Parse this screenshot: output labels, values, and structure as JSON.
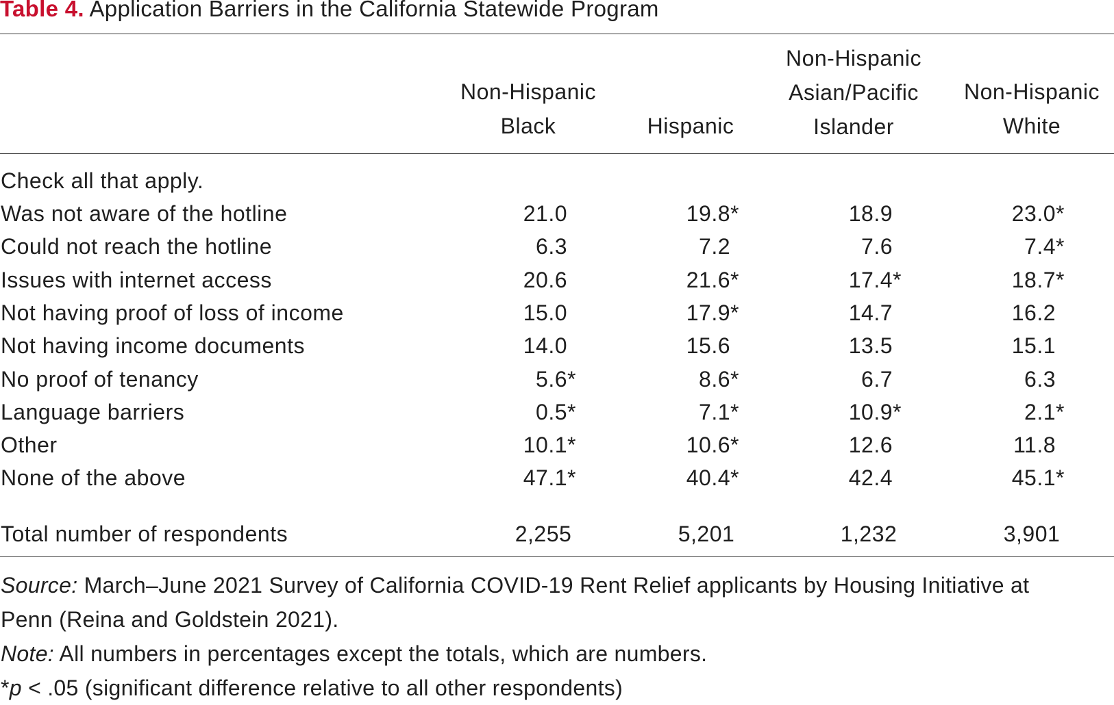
{
  "title": {
    "label": "Table 4.",
    "text": "Application Barriers in the California Statewide Program"
  },
  "columns": [
    {
      "lines": [
        "Non-Hispanic",
        "Black"
      ]
    },
    {
      "lines": [
        "Hispanic"
      ]
    },
    {
      "lines": [
        "Non-Hispanic",
        "Asian/Pacific",
        "Islander"
      ]
    },
    {
      "lines": [
        "Non-Hispanic",
        "White"
      ]
    }
  ],
  "section_label": "Check all that apply.",
  "rows": [
    {
      "label": "Was not aware of the hotline",
      "values": [
        [
          "21.0",
          ""
        ],
        [
          "19.8",
          "*"
        ],
        [
          "18.9",
          ""
        ],
        [
          "23.0",
          "*"
        ]
      ]
    },
    {
      "label": "Could not reach the hotline",
      "values": [
        [
          "6.3",
          ""
        ],
        [
          "7.2",
          ""
        ],
        [
          "7.6",
          ""
        ],
        [
          "7.4",
          "*"
        ]
      ]
    },
    {
      "label": "Issues with internet access",
      "values": [
        [
          "20.6",
          ""
        ],
        [
          "21.6",
          "*"
        ],
        [
          "17.4",
          "*"
        ],
        [
          "18.7",
          "*"
        ]
      ]
    },
    {
      "label": "Not having proof of loss of income",
      "values": [
        [
          "15.0",
          ""
        ],
        [
          "17.9",
          "*"
        ],
        [
          "14.7",
          ""
        ],
        [
          "16.2",
          ""
        ]
      ]
    },
    {
      "label": "Not having income documents",
      "values": [
        [
          "14.0",
          ""
        ],
        [
          "15.6",
          ""
        ],
        [
          "13.5",
          ""
        ],
        [
          "15.1",
          ""
        ]
      ]
    },
    {
      "label": "No proof of tenancy",
      "values": [
        [
          "5.6",
          "*"
        ],
        [
          "8.6",
          "*"
        ],
        [
          "6.7",
          ""
        ],
        [
          "6.3",
          ""
        ]
      ]
    },
    {
      "label": "Language barriers",
      "values": [
        [
          "0.5",
          "*"
        ],
        [
          "7.1",
          "*"
        ],
        [
          "10.9",
          "*"
        ],
        [
          "2.1",
          "*"
        ]
      ]
    },
    {
      "label": "Other",
      "values": [
        [
          "10.1",
          "*"
        ],
        [
          "10.6",
          "*"
        ],
        [
          "12.6",
          ""
        ],
        [
          "11.8",
          ""
        ]
      ]
    },
    {
      "label": "None of the above",
      "values": [
        [
          "47.1",
          "*"
        ],
        [
          "40.4",
          "*"
        ],
        [
          "42.4",
          ""
        ],
        [
          "45.1",
          "*"
        ]
      ]
    }
  ],
  "total": {
    "label": "Total number of respondents",
    "values": [
      "2,255",
      "5,201",
      "1,232",
      "3,901"
    ]
  },
  "notes": {
    "source_label": "Source:",
    "source_line1": "March–June 2021 Survey of California COVID-19 Rent Relief applicants by Housing Initiative at",
    "source_line2": "Penn (Reina and Goldstein 2021).",
    "note_label": "Note:",
    "note_text": "All numbers in percentages except the totals, which are numbers.",
    "sig_star": "*",
    "sig_p": "p",
    "sig_text": " < .05 (significant difference relative to all other respondents)"
  }
}
